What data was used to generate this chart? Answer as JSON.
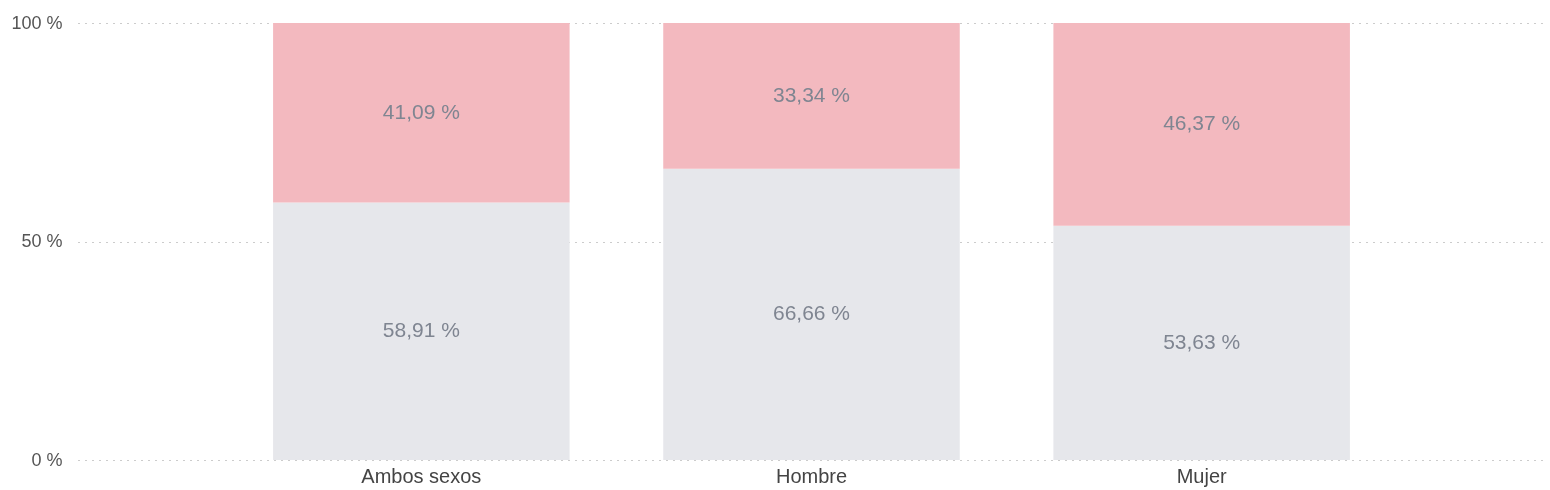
{
  "chart_data": {
    "type": "bar",
    "stacked": true,
    "categories": [
      "Ambos sexos",
      "Hombre",
      "Mujer"
    ],
    "series": [
      {
        "color": "#e6e7eb",
        "values": [
          58.91,
          66.66,
          53.63
        ],
        "value_labels": [
          "58,91 %",
          "66,66 %",
          "53,63 %"
        ]
      },
      {
        "color": "#f3b9bf",
        "values": [
          41.09,
          33.34,
          46.37
        ],
        "value_labels": [
          "41,09 %",
          "33,34 %",
          "46,37 %"
        ]
      }
    ],
    "ylim": [
      0,
      100
    ],
    "yticks": [
      {
        "value": 0,
        "label": "0 %"
      },
      {
        "value": 50,
        "label": "50 %"
      },
      {
        "value": 100,
        "label": "100 %"
      }
    ],
    "grid": "y"
  }
}
